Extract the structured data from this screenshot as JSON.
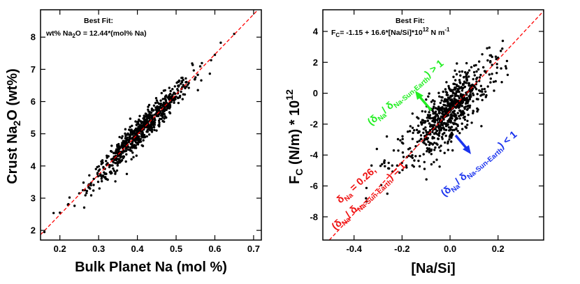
{
  "chart_data": [
    {
      "type": "scatter",
      "id": "left",
      "xlabel_main": "Bulk Planet Na (mol %)",
      "ylabel_pre": "Crust Na",
      "ylabel_sub": "2",
      "ylabel_post": "O (wt%)",
      "xlim": [
        0.15,
        0.72
      ],
      "ylim": [
        1.7,
        8.85
      ],
      "xticks": [
        0.2,
        0.3,
        0.4,
        0.5,
        0.6,
        0.7
      ],
      "xtick_labels": [
        "0.2",
        "0.3",
        "0.4",
        "0.5",
        "0.6",
        "0.7"
      ],
      "yticks": [
        2,
        3,
        4,
        5,
        6,
        7,
        8
      ],
      "ytick_labels": [
        "2",
        "3",
        "4",
        "5",
        "6",
        "7",
        "8"
      ],
      "fit_title": "Best Fit:",
      "fit_eq": {
        "pre": "wt% Na",
        "sub": "2",
        "post": "O = 12.44*(mol% Na)"
      },
      "fit_line": {
        "slope": 12.44,
        "intercept": 0.0,
        "color": "#ff0000"
      },
      "point_color": "#000000",
      "trend_sample": {
        "x": [
          0.16,
          0.2,
          0.25,
          0.3,
          0.35,
          0.4,
          0.45,
          0.5,
          0.55,
          0.6,
          0.65
        ],
        "y": [
          1.95,
          2.55,
          3.15,
          3.85,
          4.5,
          5.05,
          5.65,
          6.15,
          6.75,
          7.45,
          8.1
        ]
      }
    },
    {
      "type": "scatter",
      "id": "right",
      "xlabel_main": "[Na/Si]",
      "ylabel_pre": "F",
      "ylabel_sub": "C",
      "ylabel_post": " (N/m) * 10",
      "ylabel_sup": "12",
      "xlim": [
        -0.53,
        0.39
      ],
      "ylim": [
        -9.5,
        5.4
      ],
      "xticks": [
        -0.4,
        -0.2,
        0.0,
        0.2
      ],
      "xtick_labels": [
        "-0.4",
        "-0.2",
        "0.0",
        "0.2"
      ],
      "yticks": [
        -8,
        -6,
        -4,
        -2,
        0,
        2,
        4
      ],
      "ytick_labels": [
        "-8",
        "-6",
        "-4",
        "-2",
        "0",
        "2",
        "4"
      ],
      "fit_title": "Best Fit:",
      "fit_eq": {
        "pre": "F",
        "sub": "C",
        "mid": "= -1.15 + 16.6*[Na/Si]*10",
        "sup": "12",
        "post": " N m",
        "sup2": "-1"
      },
      "fit_line": {
        "slope": 16.6,
        "intercept": -1.15,
        "color": "#ff0000"
      },
      "point_color": "#000000",
      "trend_sample": {
        "x": [
          -0.35,
          -0.2,
          -0.1,
          -0.05,
          0.0,
          0.05,
          0.1,
          0.15,
          0.2
        ],
        "y": [
          -6.8,
          -4.5,
          -2.8,
          -2.0,
          -1.2,
          -0.3,
          0.5,
          1.4,
          2.3
        ]
      },
      "annotations": {
        "green": {
          "color": "#22ee22",
          "text": "(δ",
          "s1": "Na",
          "slash": "/ δ",
          "s2": "Na-Sun-Earth",
          "close": ") > 1"
        },
        "blue": {
          "color": "#1a33ee",
          "text": "(δ",
          "s1": "Na",
          "slash": "/ δ",
          "s2": "Na-Sun-Earth",
          "close": ") < 1"
        },
        "red1": {
          "color": "#ee1111",
          "pre": "δ",
          "sub": "Na",
          "post": " = 0.26,"
        },
        "red2": {
          "color": "#ee1111",
          "text": "(δ",
          "s1": "Na",
          "slash": "/ δ",
          "s2": "Na-Sun-Earth",
          "close": ") = 1"
        }
      }
    }
  ]
}
